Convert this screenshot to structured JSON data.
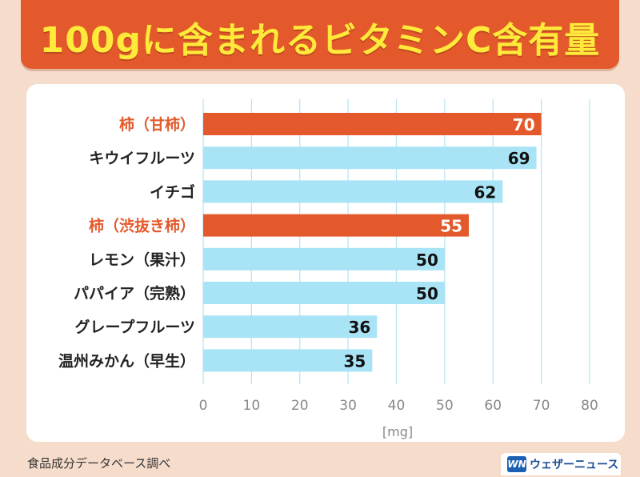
{
  "title": "100gに含まれるビタミンC含有量",
  "source_note": "食品成分データベース調べ",
  "brand": {
    "mark": "WN",
    "name": "ウェザーニュース"
  },
  "colors": {
    "highlight": "#e3592b",
    "normal": "#a9e4f6",
    "label_highlight": "#e3592b",
    "label_normal": "#222222"
  },
  "chart_data": {
    "type": "bar",
    "orientation": "horizontal",
    "title": "100gに含まれるビタミンC含有量",
    "categories": [
      "柿（甘柿）",
      "キウイフルーツ",
      "イチゴ",
      "柿（渋抜き柿）",
      "レモン（果汁）",
      "パパイア（完熟）",
      "グレープフルーツ",
      "温州みかん（早生）"
    ],
    "values": [
      70,
      69,
      62,
      55,
      50,
      50,
      36,
      35
    ],
    "highlight": [
      true,
      false,
      false,
      true,
      false,
      false,
      false,
      false
    ],
    "xlabel": "[mg]",
    "xlim": [
      0,
      80
    ],
    "xticks": [
      0,
      10,
      20,
      30,
      40,
      50,
      60,
      70,
      80
    ],
    "grid": true
  }
}
